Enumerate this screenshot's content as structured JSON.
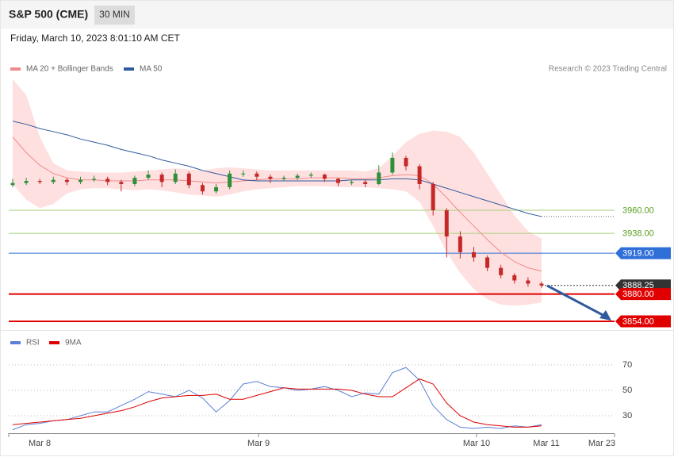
{
  "chart_data": {
    "type": "candlestick",
    "title": "S&P 500 (CME)",
    "interval": "30 MIN",
    "date": "Friday, March 10, 2023 8:01:10 AM CET",
    "legend": [
      "MA 20 + Bollinger Bands",
      "MA 50"
    ],
    "legend_colors": [
      "#f08a8a",
      "#2f5b9c"
    ],
    "copyright": "Research © 2023 Trading Central",
    "ylim": [
      3850,
      4090
    ],
    "up_color": "#2f8f3a",
    "down_color": "#c62828",
    "band_color": "#ffe0e0",
    "candles": [
      [
        3984,
        3990,
        3982,
        3986
      ],
      [
        3986,
        3991,
        3984,
        3988
      ],
      [
        3988,
        3990,
        3985,
        3987
      ],
      [
        3987,
        3992,
        3985,
        3989
      ],
      [
        3989,
        3991,
        3984,
        3987
      ],
      [
        3987,
        3992,
        3985,
        3989
      ],
      [
        3989,
        3993,
        3987,
        3990
      ],
      [
        3990,
        3992,
        3984,
        3987
      ],
      [
        3987,
        3989,
        3978,
        3985
      ],
      [
        3985,
        3993,
        3983,
        3991
      ],
      [
        3991,
        3998,
        3989,
        3994
      ],
      [
        3994,
        3996,
        3982,
        3987
      ],
      [
        3987,
        3999,
        3985,
        3995
      ],
      [
        3995,
        3997,
        3981,
        3984
      ],
      [
        3984,
        3986,
        3975,
        3978
      ],
      [
        3978,
        3985,
        3976,
        3982
      ],
      [
        3982,
        3998,
        3980,
        3995
      ],
      [
        3995,
        3998,
        3992,
        3995
      ],
      [
        3995,
        3997,
        3989,
        3992
      ],
      [
        3992,
        3994,
        3986,
        3990
      ],
      [
        3990,
        3993,
        3988,
        3991
      ],
      [
        3991,
        3995,
        3989,
        3993
      ],
      [
        3993,
        3996,
        3991,
        3994
      ],
      [
        3994,
        3995,
        3987,
        3990
      ],
      [
        3990,
        3991,
        3983,
        3986
      ],
      [
        3986,
        3989,
        3984,
        3987
      ],
      [
        3987,
        3989,
        3982,
        3985
      ],
      [
        3985,
        4003,
        3984,
        3996
      ],
      [
        3996,
        4015,
        3994,
        4010
      ],
      [
        4010,
        4012,
        3998,
        4002
      ],
      [
        4002,
        4004,
        3980,
        3985
      ],
      [
        3985,
        3987,
        3955,
        3960
      ],
      [
        3960,
        3962,
        3915,
        3935
      ],
      [
        3935,
        3940,
        3914,
        3920
      ],
      [
        3920,
        3925,
        3911,
        3915
      ],
      [
        3915,
        3917,
        3902,
        3905
      ],
      [
        3905,
        3908,
        3895,
        3898
      ],
      [
        3898,
        3900,
        3890,
        3893
      ],
      [
        3893,
        3896,
        3887,
        3890
      ],
      [
        3890,
        3892,
        3886,
        3888.25
      ]
    ],
    "ma20": [
      4030,
      4015,
      4003,
      3995,
      3991,
      3989,
      3989,
      3988,
      3988,
      3988,
      3989,
      3989,
      3989,
      3988,
      3987,
      3986,
      3987,
      3988,
      3989,
      3990,
      3990,
      3990,
      3991,
      3991,
      3991,
      3990,
      3990,
      3991,
      3993,
      3994,
      3993,
      3985,
      3972,
      3958,
      3945,
      3932,
      3920,
      3911,
      3905,
      3902
    ],
    "bollinger_upper": [
      4085,
      4070,
      4030,
      4005,
      3998,
      3997,
      3996,
      3996,
      3996,
      3997,
      3998,
      3999,
      4000,
      3999,
      3998,
      4000,
      4001,
      4000,
      3999,
      3998,
      3998,
      3998,
      3998,
      3998,
      3998,
      3998,
      3997,
      4000,
      4012,
      4025,
      4033,
      4036,
      4035,
      4030,
      4015,
      3995,
      3975,
      3955,
      3940,
      3933
    ],
    "bollinger_lower": [
      3985,
      3970,
      3962,
      3966,
      3976,
      3980,
      3981,
      3981,
      3980,
      3979,
      3980,
      3979,
      3977,
      3975,
      3974,
      3973,
      3975,
      3978,
      3980,
      3981,
      3982,
      3983,
      3983,
      3983,
      3982,
      3982,
      3982,
      3981,
      3980,
      3978,
      3968,
      3945,
      3920,
      3900,
      3885,
      3875,
      3870,
      3869,
      3870,
      3872
    ],
    "ma50": [
      4045,
      4042,
      4038,
      4035,
      4032,
      4028,
      4025,
      4022,
      4018,
      4015,
      4012,
      4008,
      4005,
      4002,
      3998,
      3995,
      3992,
      3989,
      3988,
      3988,
      3988,
      3988,
      3988,
      3988,
      3988,
      3989,
      3989,
      3989,
      3990,
      3990,
      3989,
      3985,
      3981,
      3977,
      3973,
      3969,
      3965,
      3961,
      3957,
      3954
    ],
    "levels": [
      {
        "value": 3960,
        "label": "3960.00",
        "color": "#a5d07a",
        "text_color": "#5a9e1e",
        "tag": false,
        "line_width": 1,
        "dotted": false
      },
      {
        "value": 3938,
        "label": "3938.00",
        "color": "#a5d07a",
        "text_color": "#5a9e1e",
        "tag": false,
        "line_width": 1,
        "dotted": false
      },
      {
        "value": 3919,
        "label": "3919.00",
        "color": "#2f6fd8",
        "text_color": "#ffffff",
        "tag": true,
        "line_width": 1,
        "dotted": false
      },
      {
        "value": 3888.25,
        "label": "3888.25",
        "color": "#333333",
        "text_color": "#ffffff",
        "tag": true,
        "line_width": 1,
        "dotted": true
      },
      {
        "value": 3880,
        "label": "3880.00",
        "color": "#e00000",
        "text_color": "#ffffff",
        "tag": true,
        "line_width": 2,
        "dotted": false
      },
      {
        "value": 3854,
        "label": "3854.00",
        "color": "#e00000",
        "text_color": "#ffffff",
        "tag": true,
        "line_width": 2,
        "dotted": false
      }
    ],
    "rsi": {
      "legend": [
        "RSI",
        "9MA"
      ],
      "colors": [
        "#5b7fd6",
        "#e00000"
      ],
      "ylim": [
        17,
        82
      ],
      "yticks": [
        70,
        50,
        30
      ],
      "values": [
        19,
        23,
        24,
        26,
        27,
        30,
        33,
        33,
        38,
        43,
        49,
        47,
        45,
        50,
        44,
        33,
        42,
        55,
        57,
        53,
        52,
        50,
        51,
        53,
        50,
        45,
        48,
        47,
        64,
        68,
        58,
        38,
        27,
        21,
        20,
        21,
        20,
        22,
        21,
        23
      ],
      "ma9": [
        23,
        24,
        25,
        26,
        27,
        28,
        30,
        32,
        34,
        37,
        41,
        44,
        45,
        46,
        46,
        47,
        43,
        43,
        46,
        49,
        52,
        51,
        51,
        51,
        51,
        50,
        47,
        45,
        45,
        52,
        59,
        55,
        40,
        30,
        25,
        23,
        22,
        21,
        21,
        22
      ]
    },
    "x_labels": [
      "Mar 8",
      "Mar 9",
      "Mar 10",
      "Mar 11",
      "Mar 23"
    ]
  }
}
